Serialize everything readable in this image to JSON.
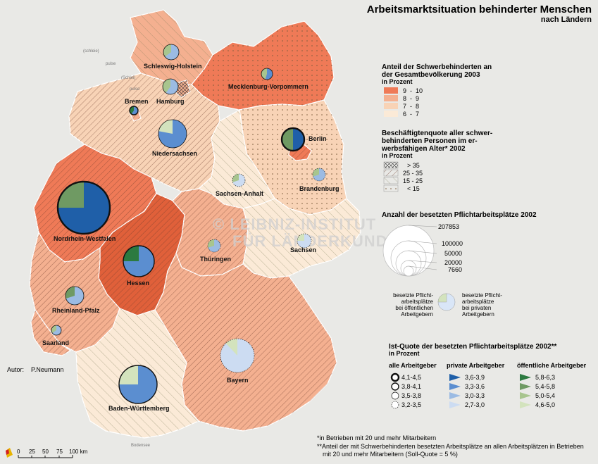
{
  "title": "Arbeitsmarktsituation behinderter Menschen",
  "subtitle": "nach Ländern",
  "author": {
    "label": "Autor:",
    "name": "P.Neumann"
  },
  "watermark": [
    "© LEIBNIZ-INSTITUT",
    "FÜR LÄNDERKUNDE"
  ],
  "coast_labels": [
    "(schleie)",
    "pulse",
    "(Schlei)",
    "pulse",
    "Bodensee"
  ],
  "states": {
    "sh": {
      "label": "Schleswig-Holstein",
      "share_class": "8 - 9",
      "quota_class": "15 - 25"
    },
    "mv": {
      "label": "Mecklenburg-Vorpommern",
      "share_class": "9 - 10",
      "quota_class": "< 15"
    },
    "hh": {
      "label": "Hamburg",
      "share_class": "8 - 9",
      "quota_class": "> 35"
    },
    "hb": {
      "label": "Bremen",
      "share_class": "8 - 9",
      "quota_class": "25 - 35"
    },
    "ni": {
      "label": "Niedersachsen",
      "share_class": "7 - 8",
      "quota_class": "25 - 35"
    },
    "be": {
      "label": "Berlin",
      "share_class": "9 - 10",
      "quota_class": "25 - 35"
    },
    "bb": {
      "label": "Brandenburg",
      "share_class": "7 - 8",
      "quota_class": "< 15"
    },
    "st": {
      "label": "Sachsen-Anhalt",
      "share_class": "6 - 7",
      "quota_class": "15 - 25"
    },
    "nw": {
      "label": "Nordrhein-Westfalen",
      "share_class": "9 - 10",
      "quota_class": "25 - 35"
    },
    "he": {
      "label": "Hessen",
      "share_class": "9 - 10",
      "quota_class": "25 - 35"
    },
    "th": {
      "label": "Thüringen",
      "share_class": "8 - 9",
      "quota_class": "25 - 35"
    },
    "sn": {
      "label": "Sachsen",
      "share_class": "6 - 7",
      "quota_class": "15 - 25"
    },
    "rp": {
      "label": "Rheinland-Pfalz",
      "share_class": "8 - 9",
      "quota_class": "25 - 35"
    },
    "sl": {
      "label": "Saarland",
      "share_class": "8 - 9",
      "quota_class": "25 - 35"
    },
    "by": {
      "label": "Bayern",
      "share_class": "8 - 9",
      "quota_class": "25 - 35"
    },
    "bw": {
      "label": "Baden-Württemberg",
      "share_class": "6 - 7",
      "quota_class": "15 - 25"
    }
  },
  "legend_share": {
    "title_lines": [
      "Anteil der Schwerbehinderten an",
      "der Gesamtbevölkerung 2003"
    ],
    "unit": "in Prozent",
    "classes": [
      {
        "label": "9  -  10",
        "color": "#ef7a57"
      },
      {
        "label": "8  -  9",
        "color": "#f4b090"
      },
      {
        "label": "7  -  8",
        "color": "#f8d3b6"
      },
      {
        "label": "6  -  7",
        "color": "#fbead7"
      }
    ]
  },
  "legend_quota": {
    "title_lines": [
      "Beschäftigtenquote aller schwer-",
      "behinderten Personen im er-",
      "werbsfähigen Alter* 2002"
    ],
    "unit": "in Prozent",
    "classes": [
      {
        "label": "> 35",
        "pattern": "cross"
      },
      {
        "label": "25 - 35",
        "pattern": "diagonal"
      },
      {
        "label": "15 - 25",
        "pattern": "diagonal-sparse"
      },
      {
        "label": "< 15",
        "pattern": "dots"
      }
    ]
  },
  "legend_size": {
    "title": "Anzahl der besetzten Pflichtarbeitsplätze 2002",
    "values": [
      "207853",
      "100000",
      "50000",
      "20000",
      "7660"
    ],
    "public_label": [
      "besetzte Pflicht-",
      "arbeitsplätze",
      "bei öffentlichen",
      "Arbeitgebern"
    ],
    "private_label": [
      "besetzte Pflicht-",
      "arbeitsplätze",
      "bei privaten",
      "Arbeitgebern"
    ]
  },
  "legend_rate": {
    "title": "Ist-Quote der besetzten Pflichtarbeitsplätze 2002**",
    "unit": "in Prozent",
    "col_all": "alle Arbeitgeber",
    "col_private": "private Arbeitgeber",
    "col_public": "öffentliche Arbeitgeber",
    "all": [
      "4,1-4,5",
      "3,8-4,1",
      "3,5-3,8",
      "3,2-3,5"
    ],
    "private": [
      "3,6-3,9",
      "3,3-3,6",
      "3,0-3,3",
      "2,7-3,0"
    ],
    "public": [
      "5,8-6,3",
      "5,4-5,8",
      "5,0-5,4",
      "4,6-5,0"
    ],
    "private_colors": [
      "#1f5fa8",
      "#5b8ed0",
      "#9bbbe3",
      "#ccdcf2"
    ],
    "public_colors": [
      "#2c7a40",
      "#6f9a63",
      "#a8c58e",
      "#d3e3bd"
    ]
  },
  "footnotes": [
    "*in Betrieben mit 20 und mehr Mitarbeitern",
    "**Anteil der mit Schwerbehinderten besetzten Arbeitsplätze an allen Arbeitsplätzen in Betrieben",
    "mit 20 und mehr Mitarbeitern (Soll-Quote = 5 %)"
  ],
  "scale": {
    "ticks": [
      "0",
      "25",
      "50",
      "75",
      "100 km"
    ]
  }
}
